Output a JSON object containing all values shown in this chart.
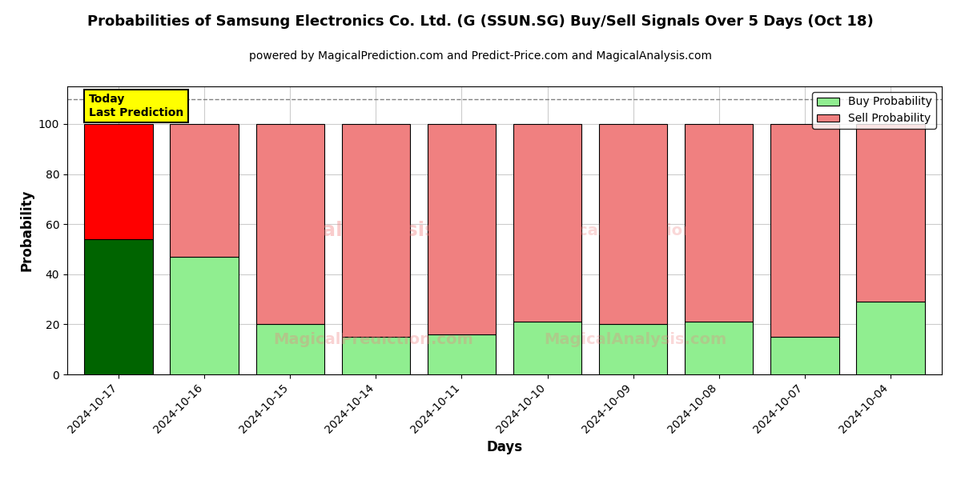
{
  "title": "Probabilities of Samsung Electronics Co. Ltd. (G (SSUN.SG) Buy/Sell Signals Over 5 Days (Oct 18)",
  "subtitle": "powered by MagicalPrediction.com and Predict-Price.com and MagicalAnalysis.com",
  "xlabel": "Days",
  "ylabel": "Probability",
  "dates": [
    "2024-10-17",
    "2024-10-16",
    "2024-10-15",
    "2024-10-14",
    "2024-10-11",
    "2024-10-10",
    "2024-10-09",
    "2024-10-08",
    "2024-10-07",
    "2024-10-04"
  ],
  "buy_values": [
    54,
    47,
    20,
    15,
    16,
    21,
    20,
    21,
    15,
    29
  ],
  "sell_values": [
    46,
    53,
    80,
    85,
    84,
    79,
    80,
    79,
    85,
    71
  ],
  "buy_colors": [
    "#006400",
    "#90EE90",
    "#90EE90",
    "#90EE90",
    "#90EE90",
    "#90EE90",
    "#90EE90",
    "#90EE90",
    "#90EE90",
    "#90EE90"
  ],
  "sell_colors": [
    "#FF0000",
    "#F08080",
    "#F08080",
    "#F08080",
    "#F08080",
    "#F08080",
    "#F08080",
    "#F08080",
    "#F08080",
    "#F08080"
  ],
  "today_label": "Today\nLast Prediction",
  "ylim": [
    0,
    115
  ],
  "yticks": [
    0,
    20,
    40,
    60,
    80,
    100
  ],
  "dashed_line_y": 110,
  "legend_buy_color": "#90EE90",
  "legend_sell_color": "#F08080",
  "background_color": "#ffffff",
  "bar_width": 0.8,
  "today_box_color": "#FFFF00",
  "grid_color": "#cccccc"
}
